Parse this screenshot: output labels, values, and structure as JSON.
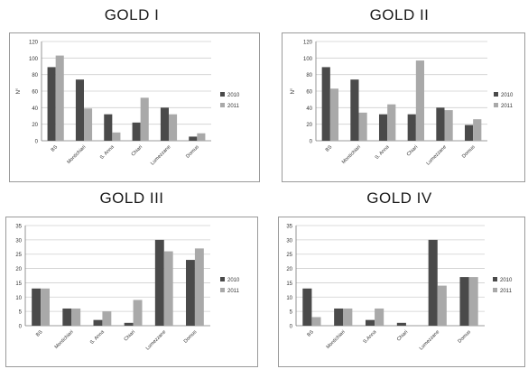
{
  "chart_data": [
    {
      "type": "bar",
      "title": "GOLD I",
      "ylabel": "N°",
      "ylim": [
        0,
        120
      ],
      "yticks": [
        0,
        20,
        40,
        60,
        80,
        100,
        120
      ],
      "categories": [
        "BS",
        "Montichiari",
        "S. Anna",
        "Chiari",
        "Lumezzane",
        "Domus"
      ],
      "series": [
        {
          "name": "2010",
          "color": "#4a4a4a",
          "values": [
            89,
            74,
            32,
            22,
            40,
            5
          ]
        },
        {
          "name": "2011",
          "color": "#a9a9a9",
          "values": [
            103,
            39,
            10,
            52,
            32,
            9
          ]
        }
      ],
      "legend": "right"
    },
    {
      "type": "bar",
      "title": "GOLD II",
      "ylabel": "N°",
      "ylim": [
        0,
        120
      ],
      "yticks": [
        0,
        20,
        40,
        60,
        80,
        100,
        120
      ],
      "categories": [
        "BS",
        "Montichiari",
        "S. Anna",
        "Chiari",
        "Lumezzane",
        "Domus"
      ],
      "series": [
        {
          "name": "2010",
          "color": "#4a4a4a",
          "values": [
            89,
            74,
            32,
            32,
            40,
            19
          ]
        },
        {
          "name": "2011",
          "color": "#a9a9a9",
          "values": [
            63,
            34,
            44,
            97,
            37,
            26
          ]
        }
      ],
      "legend": "right"
    },
    {
      "type": "bar",
      "title": "GOLD III",
      "ylabel": "",
      "ylim": [
        0,
        35
      ],
      "yticks": [
        0,
        5,
        10,
        15,
        20,
        25,
        30,
        35
      ],
      "categories": [
        "BS",
        "Montichiari",
        "S. Anna",
        "Chiari",
        "Lumezzane",
        "Domus"
      ],
      "series": [
        {
          "name": "2010",
          "color": "#4a4a4a",
          "values": [
            13,
            6,
            2,
            1,
            30,
            23
          ]
        },
        {
          "name": "2011",
          "color": "#a9a9a9",
          "values": [
            13,
            6,
            5,
            9,
            26,
            27
          ]
        }
      ],
      "legend": "right"
    },
    {
      "type": "bar",
      "title": "GOLD IV",
      "ylabel": "",
      "ylim": [
        0,
        35
      ],
      "yticks": [
        0,
        5,
        10,
        15,
        20,
        25,
        30,
        35
      ],
      "categories": [
        "BS",
        "Montichiari",
        "S.Anna",
        "Chiari",
        "Lumezzane",
        "Domus"
      ],
      "series": [
        {
          "name": "2010",
          "color": "#4a4a4a",
          "values": [
            13,
            6,
            2,
            1,
            30,
            17
          ]
        },
        {
          "name": "2011",
          "color": "#a9a9a9",
          "values": [
            3,
            6,
            6,
            0,
            14,
            17
          ]
        }
      ],
      "legend": "right"
    }
  ]
}
